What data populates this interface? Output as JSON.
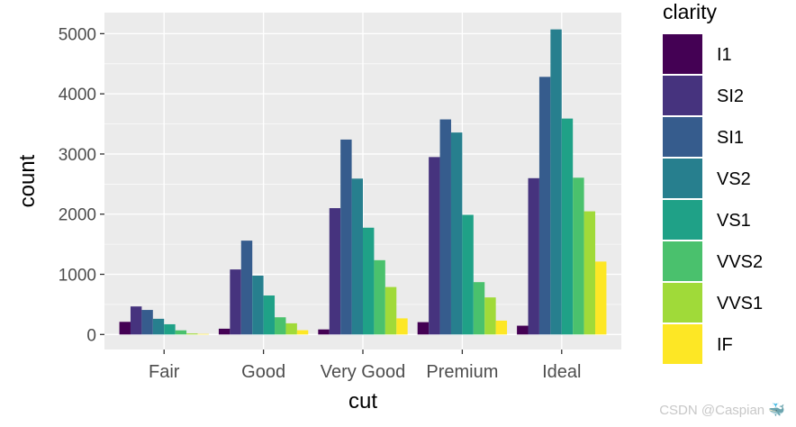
{
  "chart_data": {
    "type": "bar",
    "xlabel": "cut",
    "ylabel": "count",
    "categories": [
      "Fair",
      "Good",
      "Very Good",
      "Premium",
      "Ideal"
    ],
    "yticks": [
      "0",
      "1000",
      "2000",
      "3000",
      "4000",
      "5000"
    ],
    "ylim": [
      -250,
      5350
    ],
    "legend": {
      "title": "clarity",
      "position": "right"
    },
    "series": [
      {
        "name": "I1",
        "color": "#440154",
        "values": [
          210,
          96,
          84,
          205,
          146
        ]
      },
      {
        "name": "SI2",
        "color": "#46337E",
        "values": [
          466,
          1081,
          2100,
          2949,
          2598
        ]
      },
      {
        "name": "SI1",
        "color": "#365C8D",
        "values": [
          408,
          1560,
          3240,
          3575,
          4282
        ]
      },
      {
        "name": "VS2",
        "color": "#277F8E",
        "values": [
          261,
          978,
          2591,
          3357,
          5071
        ]
      },
      {
        "name": "VS1",
        "color": "#1FA187",
        "values": [
          170,
          648,
          1775,
          1989,
          3589
        ]
      },
      {
        "name": "VVS2",
        "color": "#4AC16D",
        "values": [
          69,
          286,
          1235,
          870,
          2606
        ]
      },
      {
        "name": "VVS1",
        "color": "#A0DA39",
        "values": [
          17,
          186,
          789,
          616,
          2047
        ]
      },
      {
        "name": "IF",
        "color": "#FDE725",
        "values": [
          9,
          71,
          268,
          230,
          1212
        ]
      }
    ]
  },
  "watermark": "CSDN @Caspian 🐳"
}
